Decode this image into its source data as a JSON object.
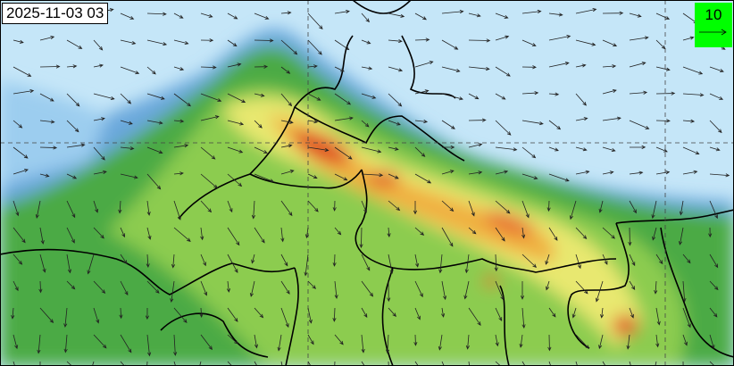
{
  "timestamp": "2025-11-03 03",
  "legend": {
    "reference_vector_value": "10",
    "background_color": "#00ff00"
  },
  "colors": {
    "clean": "#c5e6f8",
    "low": "#7fb6e0",
    "moderate_low": "#5ab040",
    "moderate": "#8ccc50",
    "elevated": "#e8e870",
    "high": "#f0b040",
    "very_high": "#e05020"
  }
}
